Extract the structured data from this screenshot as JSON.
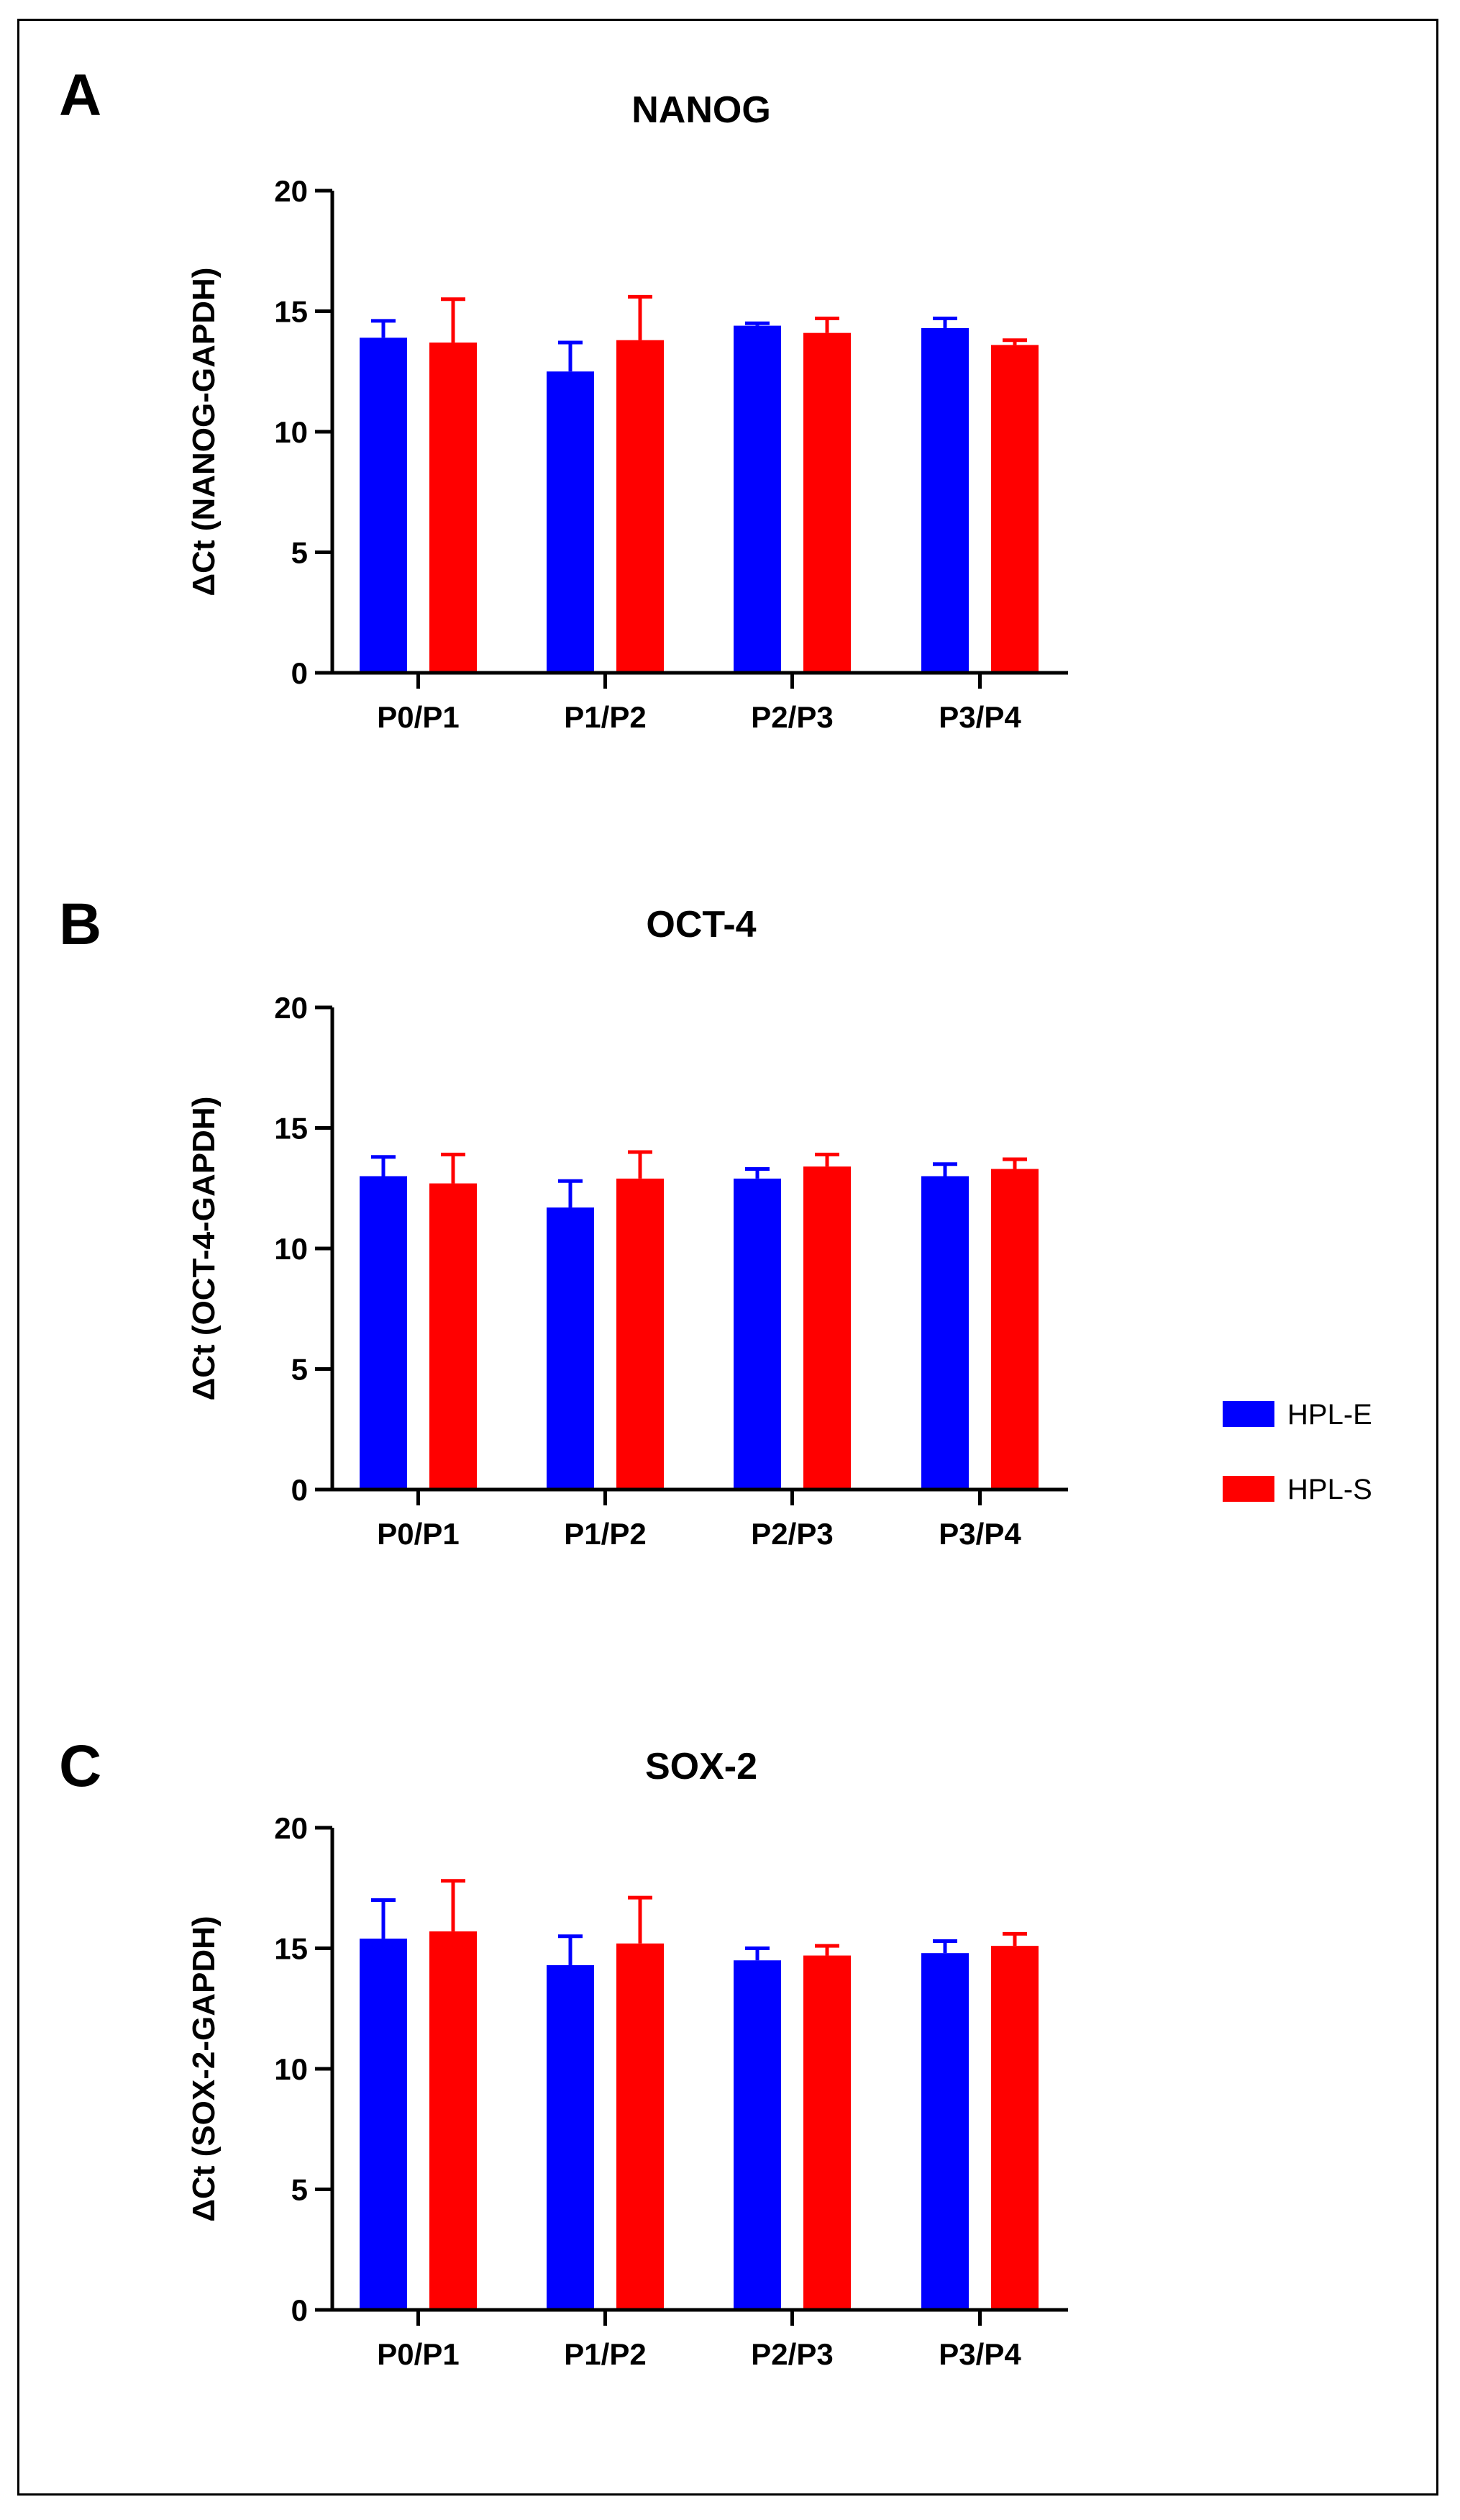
{
  "colors": {
    "HPL-E": "#0000FF",
    "HPL-S": "#FF0000",
    "axis": "#000000"
  },
  "legend": {
    "placement": "right",
    "entries": [
      {
        "name": "HPL-E",
        "color": "#0000FF"
      },
      {
        "name": "HPL-S",
        "color": "#FF0000"
      }
    ]
  },
  "chart_data": [
    {
      "panel_label": "A",
      "type": "bar",
      "title": "NANOG",
      "ylabel": "ΔCt (NANOG-GAPDH)",
      "xlabel": "",
      "ylim": [
        0,
        20
      ],
      "yticks": [
        0,
        5,
        10,
        15,
        20
      ],
      "categories": [
        "P0/P1",
        "P1/P2",
        "P2/P3",
        "P3/P4"
      ],
      "series": [
        {
          "name": "HPL-E",
          "values": [
            13.9,
            12.5,
            14.4,
            14.3
          ],
          "errors": [
            0.7,
            1.2,
            0.1,
            0.4
          ]
        },
        {
          "name": "HPL-S",
          "values": [
            13.7,
            13.8,
            14.1,
            13.6
          ],
          "errors": [
            1.8,
            1.8,
            0.6,
            0.2
          ]
        }
      ]
    },
    {
      "panel_label": "B",
      "type": "bar",
      "title": "OCT-4",
      "ylabel": "ΔCt (OCT-4-GAPDH)",
      "xlabel": "",
      "ylim": [
        0,
        20
      ],
      "yticks": [
        0,
        5,
        10,
        15,
        20
      ],
      "categories": [
        "P0/P1",
        "P1/P2",
        "P2/P3",
        "P3/P4"
      ],
      "series": [
        {
          "name": "HPL-E",
          "values": [
            13.0,
            11.7,
            12.9,
            13.0
          ],
          "errors": [
            0.8,
            1.1,
            0.4,
            0.5
          ]
        },
        {
          "name": "HPL-S",
          "values": [
            12.7,
            12.9,
            13.4,
            13.3
          ],
          "errors": [
            1.2,
            1.1,
            0.5,
            0.4
          ]
        }
      ]
    },
    {
      "panel_label": "C",
      "type": "bar",
      "title": "SOX-2",
      "ylabel": "ΔCt (SOX-2-GAPDH)",
      "xlabel": "",
      "ylim": [
        0,
        20
      ],
      "yticks": [
        0,
        5,
        10,
        15,
        20
      ],
      "categories": [
        "P0/P1",
        "P1/P2",
        "P2/P3",
        "P3/P4"
      ],
      "series": [
        {
          "name": "HPL-E",
          "values": [
            15.4,
            14.3,
            14.5,
            14.8
          ],
          "errors": [
            1.6,
            1.2,
            0.5,
            0.5
          ]
        },
        {
          "name": "HPL-S",
          "values": [
            15.7,
            15.2,
            14.7,
            15.1
          ],
          "errors": [
            2.1,
            1.9,
            0.4,
            0.5
          ]
        }
      ]
    }
  ]
}
